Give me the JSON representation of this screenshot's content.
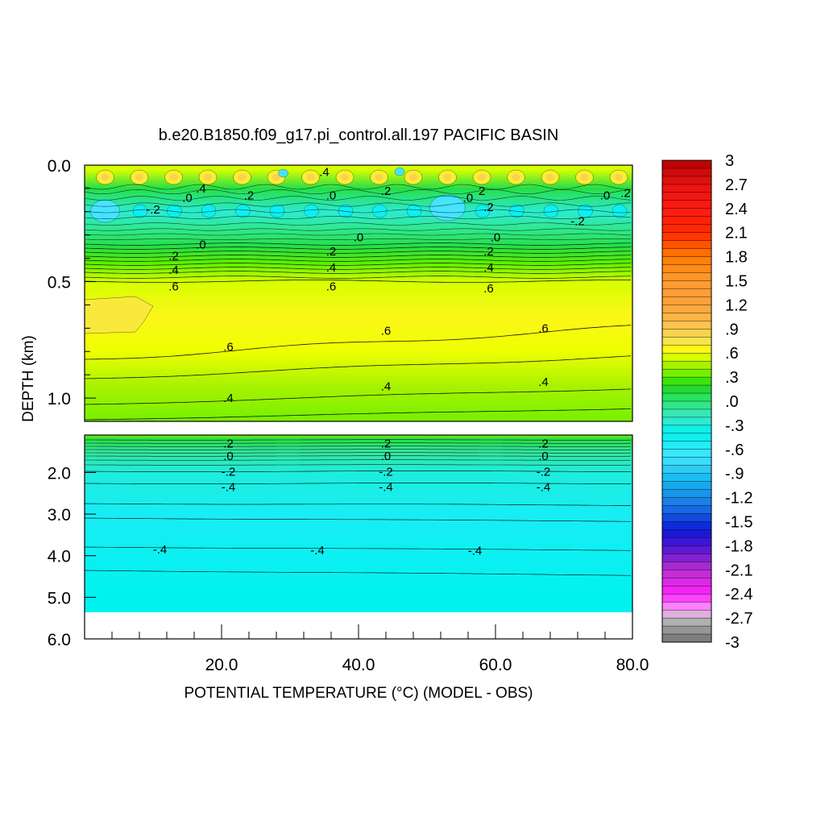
{
  "chart_data": {
    "type": "heatmap",
    "title": "b.e20.B1850.f09_g17.pi_control.all.197 PACIFIC BASIN",
    "xlabel": "POTENTIAL TEMPERATURE (°C) (MODEL - OBS)",
    "ylabel": "DEPTH (km)",
    "xlim": [
      0,
      80
    ],
    "ylim_upper_panel": [
      0.0,
      1.1
    ],
    "ylim_lower_panel": [
      1.1,
      6.0
    ],
    "x_ticks": [
      "20.0",
      "40.0",
      "60.0",
      "80.0"
    ],
    "y_ticks_upper": [
      "0.0",
      "0.5",
      "1.0"
    ],
    "y_ticks_lower": [
      "2.0",
      "3.0",
      "4.0",
      "5.0",
      "6.0"
    ],
    "colorbar": {
      "range": [
        -3,
        3
      ],
      "step": 0.1,
      "tick_labels": [
        "3",
        "2.7",
        "2.4",
        "2.1",
        "1.8",
        "1.5",
        "1.2",
        ".9",
        ".6",
        ".3",
        ".0",
        "-.3",
        "-.6",
        "-.9",
        "-1.2",
        "-1.5",
        "-1.8",
        "-2.1",
        "-2.4",
        "-2.7",
        "-3"
      ]
    },
    "depth_profile": [
      {
        "depth": 0.02,
        "value": 0.55
      },
      {
        "depth": 0.1,
        "value": 0.1
      },
      {
        "depth": 0.2,
        "value": -0.25
      },
      {
        "depth": 0.28,
        "value": -0.05
      },
      {
        "depth": 0.35,
        "value": 0.1
      },
      {
        "depth": 0.42,
        "value": 0.3
      },
      {
        "depth": 0.5,
        "value": 0.55
      },
      {
        "depth": 0.65,
        "value": 0.65
      },
      {
        "depth": 0.8,
        "value": 0.58
      },
      {
        "depth": 0.95,
        "value": 0.45
      },
      {
        "depth": 1.1,
        "value": 0.35
      },
      {
        "depth": 1.2,
        "value": 0.1
      },
      {
        "depth": 1.5,
        "value": -0.1
      },
      {
        "depth": 2.0,
        "value": -0.3
      },
      {
        "depth": 3.0,
        "value": -0.5
      },
      {
        "depth": 4.0,
        "value": -0.45
      },
      {
        "depth": 5.0,
        "value": -0.4
      },
      {
        "depth": 5.35,
        "value": -0.4
      }
    ],
    "contour_labels": [
      {
        "text": ".4",
        "x": 35,
        "depth": 0.03
      },
      {
        "text": ".4",
        "x": 17,
        "depth": 0.1
      },
      {
        "text": ".0",
        "x": 15,
        "depth": 0.14
      },
      {
        "text": ".2",
        "x": 24,
        "depth": 0.13
      },
      {
        "text": ".0",
        "x": 36,
        "depth": 0.13
      },
      {
        "text": ".2",
        "x": 44,
        "depth": 0.11
      },
      {
        "text": ".0",
        "x": 56,
        "depth": 0.14
      },
      {
        "text": "2",
        "x": 58,
        "depth": 0.11
      },
      {
        "text": ".2",
        "x": 59,
        "depth": 0.18
      },
      {
        "text": ".0",
        "x": 76,
        "depth": 0.13
      },
      {
        "text": ".2",
        "x": 79,
        "depth": 0.12
      },
      {
        "text": "-.2",
        "x": 10,
        "depth": 0.19
      },
      {
        "text": "-.2",
        "x": 72,
        "depth": 0.24
      },
      {
        "text": ".0",
        "x": 40,
        "depth": 0.31
      },
      {
        "text": ".0",
        "x": 60,
        "depth": 0.31
      },
      {
        "text": ".0",
        "x": 17,
        "depth": 0.34
      },
      {
        "text": ".2",
        "x": 13,
        "depth": 0.39
      },
      {
        "text": ".2",
        "x": 36,
        "depth": 0.37
      },
      {
        "text": ".2",
        "x": 59,
        "depth": 0.37
      },
      {
        "text": ".4",
        "x": 13,
        "depth": 0.45
      },
      {
        "text": ".4",
        "x": 36,
        "depth": 0.44
      },
      {
        "text": ".4",
        "x": 59,
        "depth": 0.44
      },
      {
        "text": ".6",
        "x": 13,
        "depth": 0.52
      },
      {
        "text": ".6",
        "x": 36,
        "depth": 0.52
      },
      {
        "text": ".6",
        "x": 59,
        "depth": 0.53
      },
      {
        "text": ".6",
        "x": 44,
        "depth": 0.71
      },
      {
        "text": ".6",
        "x": 67,
        "depth": 0.7
      },
      {
        "text": ".6",
        "x": 21,
        "depth": 0.78
      },
      {
        "text": ".4",
        "x": 21,
        "depth": 1.0
      },
      {
        "text": ".4",
        "x": 44,
        "depth": 0.95
      },
      {
        "text": ".4",
        "x": 67,
        "depth": 0.93
      },
      {
        "text": ".2",
        "x": 21,
        "depth": 1.3
      },
      {
        "text": ".2",
        "x": 44,
        "depth": 1.3
      },
      {
        "text": ".2",
        "x": 67,
        "depth": 1.3
      },
      {
        "text": ".0",
        "x": 21,
        "depth": 1.6
      },
      {
        "text": ".0",
        "x": 44,
        "depth": 1.6
      },
      {
        "text": ".0",
        "x": 67,
        "depth": 1.6
      },
      {
        "text": "-.2",
        "x": 21,
        "depth": 1.98
      },
      {
        "text": "-.2",
        "x": 44,
        "depth": 1.98
      },
      {
        "text": "-.2",
        "x": 67,
        "depth": 1.98
      },
      {
        "text": "-.4",
        "x": 21,
        "depth": 2.35
      },
      {
        "text": "-.4",
        "x": 44,
        "depth": 2.35
      },
      {
        "text": "-.4",
        "x": 67,
        "depth": 2.35
      },
      {
        "text": "-.4",
        "x": 11,
        "depth": 3.85
      },
      {
        "text": "-.4",
        "x": 34,
        "depth": 3.87
      },
      {
        "text": "-.4",
        "x": 57,
        "depth": 3.88
      }
    ]
  }
}
